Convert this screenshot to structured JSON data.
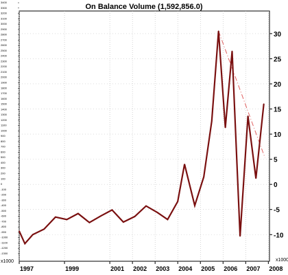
{
  "chart_data": {
    "type": "line",
    "title": "On Balance Volume (1,592,856.0)",
    "x_unit_label": "",
    "y_unit_label": "x1000",
    "left_unit_label": "x1000",
    "xlim": [
      1997,
      2008.05
    ],
    "ylim": [
      -15.3,
      34.5
    ],
    "x_ticks": [
      1997,
      1999,
      2001,
      2002,
      2003,
      2004,
      2005,
      2006,
      2007,
      2008
    ],
    "x_tick_labels": [
      "1997",
      "1999",
      "2001",
      "2002",
      "2003",
      "2004",
      "2005",
      "2006",
      "2007",
      "2008"
    ],
    "y_ticks": [
      -10,
      -5,
      0,
      5,
      10,
      15,
      20,
      25,
      30
    ],
    "y_tick_labels": [
      "-10",
      "-5",
      "0",
      "5",
      "10",
      "15",
      "20",
      "25",
      "30"
    ],
    "left_axis_labels": [
      "3400",
      "3300",
      "3200",
      "3100",
      "3000",
      "2900",
      "2800",
      "2700",
      "2600",
      "2500",
      "2400",
      "2300",
      "2200",
      "2100",
      "2000",
      "1900",
      "1800",
      "1700",
      "1600",
      "1500",
      "1400",
      "1300",
      "1200",
      "1100",
      "1000",
      "900",
      "800",
      "700",
      "600",
      "500",
      "400",
      "300",
      "200",
      "100",
      "0",
      "-100",
      "-200",
      "-300",
      "-400",
      "-500",
      "-600",
      "-700",
      "-800",
      "-900",
      "-1000",
      "-1100",
      "-1200",
      "-1300"
    ],
    "grid": true,
    "series": [
      {
        "values": [
          {
            "x": 1997.0,
            "y": -9.3
          },
          {
            "x": 1997.25,
            "y": -11.8
          },
          {
            "x": 1997.6,
            "y": -10.0
          },
          {
            "x": 1998.1,
            "y": -8.9
          },
          {
            "x": 1998.6,
            "y": -6.5
          },
          {
            "x": 1999.1,
            "y": -7.0
          },
          {
            "x": 1999.6,
            "y": -5.8
          },
          {
            "x": 2000.1,
            "y": -7.6
          },
          {
            "x": 2000.6,
            "y": -6.3
          },
          {
            "x": 2001.1,
            "y": -5.1
          },
          {
            "x": 2001.6,
            "y": -7.5
          },
          {
            "x": 2002.1,
            "y": -6.4
          },
          {
            "x": 2002.6,
            "y": -4.3
          },
          {
            "x": 2003.1,
            "y": -5.6
          },
          {
            "x": 2003.55,
            "y": -7.0
          },
          {
            "x": 2004.0,
            "y": -3.4
          },
          {
            "x": 2004.3,
            "y": 4.0
          },
          {
            "x": 2004.75,
            "y": -4.2
          },
          {
            "x": 2005.15,
            "y": 1.5
          },
          {
            "x": 2005.5,
            "y": 12.6
          },
          {
            "x": 2005.8,
            "y": 30.5
          },
          {
            "x": 2006.1,
            "y": 11.3
          },
          {
            "x": 2006.4,
            "y": 26.5
          },
          {
            "x": 2006.75,
            "y": -10.3
          },
          {
            "x": 2007.1,
            "y": 13.6
          },
          {
            "x": 2007.45,
            "y": 1.2
          },
          {
            "x": 2007.8,
            "y": 16.0
          }
        ],
        "color": "#7a1010"
      }
    ],
    "trendline": {
      "from": {
        "x": 2005.8,
        "y": 30.5
      },
      "to": {
        "x": 2007.85,
        "y": 5.3
      },
      "color": "#e06060",
      "style": "dashed"
    }
  }
}
